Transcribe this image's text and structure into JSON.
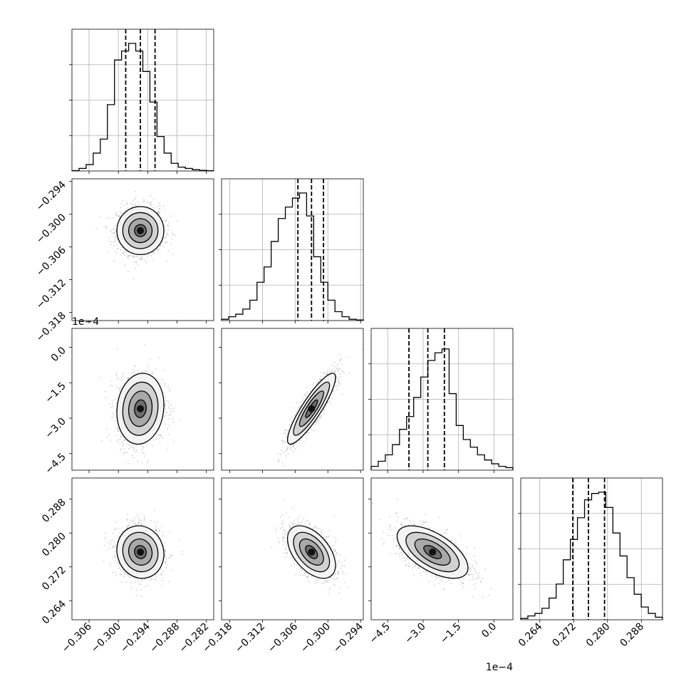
{
  "chart_data": {
    "type": "corner",
    "n_params": 4,
    "grid": true,
    "histogram_quantile_lines": "dashed",
    "params": [
      {
        "range": [
          -0.3095,
          -0.2805
        ],
        "ticks": [
          -0.306,
          -0.3,
          -0.294,
          -0.288,
          -0.282
        ],
        "tick_labels": [
          "−0.306",
          "−0.300",
          "−0.294",
          "−0.288",
          "−0.282"
        ],
        "offset_label": "",
        "quantiles": [
          -0.2985,
          -0.2955,
          -0.2925
        ],
        "hist": [
          0.003,
          0.02,
          0.05,
          0.14,
          0.25,
          0.52,
          0.87,
          0.94,
          1.0,
          0.94,
          0.78,
          0.54,
          0.27,
          0.14,
          0.06,
          0.03,
          0.02,
          0.01,
          0.005,
          0.002
        ]
      },
      {
        "range": [
          -0.3195,
          -0.2935
        ],
        "ticks": [
          -0.318,
          -0.312,
          -0.306,
          -0.3,
          -0.294
        ],
        "tick_labels": [
          "−0.318",
          "−0.312",
          "−0.306",
          "−0.300",
          "−0.294"
        ],
        "offset_label": "",
        "quantiles": [
          -0.3055,
          -0.303,
          -0.3008
        ],
        "hist": [
          0.01,
          0.03,
          0.05,
          0.09,
          0.16,
          0.3,
          0.42,
          0.62,
          0.8,
          0.89,
          0.96,
          1.0,
          0.82,
          0.5,
          0.3,
          0.16,
          0.07,
          0.03,
          0.01,
          0.005
        ]
      },
      {
        "range": [
          -5.2,
          0.8
        ],
        "ticks": [
          -4.5,
          -3.0,
          -1.5,
          0.0
        ],
        "tick_labels": [
          "−4.5",
          "−3.0",
          "−1.5",
          "0.0"
        ],
        "offset_label": "1e−4",
        "quantiles": [
          -3.6,
          -2.8,
          -2.1
        ],
        "hist": [
          0.03,
          0.07,
          0.12,
          0.2,
          0.32,
          0.42,
          0.57,
          0.73,
          0.86,
          0.92,
          0.95,
          0.6,
          0.35,
          0.24,
          0.18,
          0.12,
          0.08,
          0.05,
          0.03,
          0.02
        ]
      },
      {
        "range": [
          0.2595,
          0.293
        ],
        "ticks": [
          0.264,
          0.272,
          0.28,
          0.288
        ],
        "tick_labels": [
          "0.264",
          "0.272",
          "0.280",
          "0.288"
        ],
        "offset_label": "",
        "quantiles": [
          0.2718,
          0.2755,
          0.2793
        ],
        "hist": [
          0.01,
          0.03,
          0.05,
          0.09,
          0.17,
          0.28,
          0.47,
          0.63,
          0.8,
          0.94,
          0.99,
          1.0,
          0.88,
          0.68,
          0.5,
          0.33,
          0.2,
          0.1,
          0.05,
          0.02
        ]
      }
    ],
    "pairs": [
      {
        "row": 1,
        "col": 0,
        "mean": [
          -0.2955,
          -0.303
        ],
        "sd": [
          0.0024,
          0.0022
        ],
        "corr": 0.0
      },
      {
        "row": 2,
        "col": 0,
        "mean": [
          -0.2955,
          -2.6
        ],
        "sd": [
          0.0024,
          0.75
        ],
        "corr": 0.1
      },
      {
        "row": 2,
        "col": 1,
        "mean": [
          -0.303,
          -2.6
        ],
        "sd": [
          0.0022,
          0.75
        ],
        "corr": 0.88
      },
      {
        "row": 3,
        "col": 0,
        "mean": [
          -0.2955,
          0.2755
        ],
        "sd": [
          0.0024,
          0.0031
        ],
        "corr": -0.08
      },
      {
        "row": 3,
        "col": 1,
        "mean": [
          -0.303,
          0.2755
        ],
        "sd": [
          0.0022,
          0.0031
        ],
        "corr": -0.5
      },
      {
        "row": 3,
        "col": 2,
        "mean": [
          -2.6,
          0.2755
        ],
        "sd": [
          0.75,
          0.0031
        ],
        "corr": -0.6
      }
    ]
  }
}
